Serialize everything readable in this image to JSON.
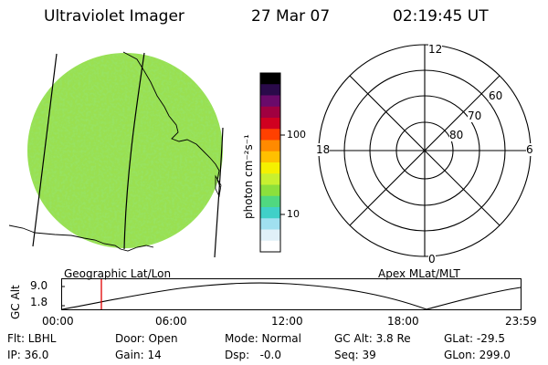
{
  "header": {
    "instrument": "Ultraviolet Imager",
    "date": "27 Mar 07",
    "time": "02:19:45 UT"
  },
  "colorbar": {
    "unit_label": "photon cm⁻²s⁻¹",
    "ticks": [
      "100",
      "10"
    ],
    "scale": "log",
    "colors": [
      "#000000",
      "#2a0a4a",
      "#6a0a6a",
      "#a00040",
      "#d00020",
      "#ff4000",
      "#ff8a00",
      "#ffc000",
      "#f5f000",
      "#c8f030",
      "#8ce03c",
      "#50d880",
      "#40d0c8",
      "#a0e0f0",
      "#e0f0f8",
      "#ffffff"
    ]
  },
  "polar": {
    "top_label": "12",
    "bottom_label": "0",
    "left_label": "18",
    "right_label": "6",
    "ring_labels": [
      "80",
      "70",
      "60"
    ]
  },
  "left_caption": "Geographic Lat/Lon",
  "right_caption": "Apex MLat/MLT",
  "orbit": {
    "ylabel": "GC Alt",
    "yticks": [
      "9.0",
      "1.8"
    ],
    "xticks": [
      "00:00",
      "06:00",
      "12:00",
      "18:00",
      "23:59"
    ]
  },
  "info": {
    "flt": "Flt: LBHL",
    "ip": "IP: 36.0",
    "door": "Door: Open",
    "gain": "Gain: 14",
    "mode": "Mode: Normal",
    "dsp": "Dsp:   -0.0",
    "gcalt": "GC Alt: 3.8 Re",
    "seq": "Seq: 39",
    "glat": "GLat: -29.5",
    "glon": "GLon: 299.0"
  },
  "colors": {
    "marker": "#e00000",
    "disk": "#8ee04a"
  }
}
